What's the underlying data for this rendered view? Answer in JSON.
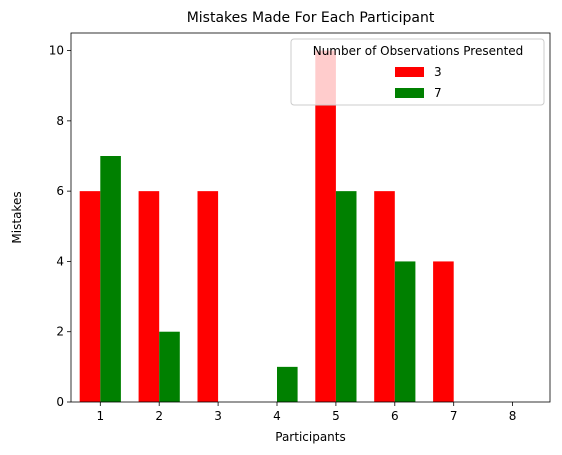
{
  "chart_data": {
    "type": "bar",
    "title": "Mistakes Made For Each Participant",
    "xlabel": "Participants",
    "ylabel": "Mistakes",
    "categories": [
      "1",
      "2",
      "3",
      "4",
      "5",
      "6",
      "7",
      "8"
    ],
    "ylim": [
      0,
      10.5
    ],
    "yticks": [
      "0",
      "2",
      "4",
      "6",
      "8",
      "10"
    ],
    "grid": false,
    "legend": {
      "title": "Number of Observations Presented",
      "placement": "top-right"
    },
    "series": [
      {
        "name": "3",
        "color": "#ff0000",
        "values": [
          6,
          6,
          6,
          0,
          10,
          6,
          4,
          0
        ]
      },
      {
        "name": "7",
        "color": "#008000",
        "values": [
          7,
          2,
          0,
          1,
          6,
          4,
          0,
          0
        ]
      }
    ]
  }
}
